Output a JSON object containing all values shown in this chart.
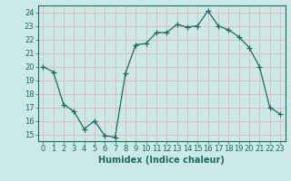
{
  "x": [
    0,
    1,
    2,
    3,
    4,
    5,
    6,
    7,
    8,
    9,
    10,
    11,
    12,
    13,
    14,
    15,
    16,
    17,
    18,
    19,
    20,
    21,
    22,
    23
  ],
  "y": [
    20.0,
    19.6,
    17.2,
    16.7,
    15.4,
    16.0,
    14.9,
    14.8,
    19.5,
    21.6,
    21.7,
    22.5,
    22.5,
    23.1,
    22.9,
    23.0,
    24.1,
    23.0,
    22.7,
    22.2,
    21.4,
    20.0,
    17.0,
    16.5
  ],
  "line_color": "#1a6b5a",
  "marker": "+",
  "marker_size": 4,
  "bg_color": "#cce9e9",
  "grid_color": "#e8b8b8",
  "xlabel": "Humidex (Indice chaleur)",
  "xlim": [
    -0.5,
    23.5
  ],
  "ylim": [
    14.5,
    24.5
  ],
  "yticks": [
    15,
    16,
    17,
    18,
    19,
    20,
    21,
    22,
    23,
    24
  ],
  "xticks": [
    0,
    1,
    2,
    3,
    4,
    5,
    6,
    7,
    8,
    9,
    10,
    11,
    12,
    13,
    14,
    15,
    16,
    17,
    18,
    19,
    20,
    21,
    22,
    23
  ],
  "tick_color": "#1a6b5a",
  "xlabel_fontsize": 7,
  "tick_fontsize": 6
}
